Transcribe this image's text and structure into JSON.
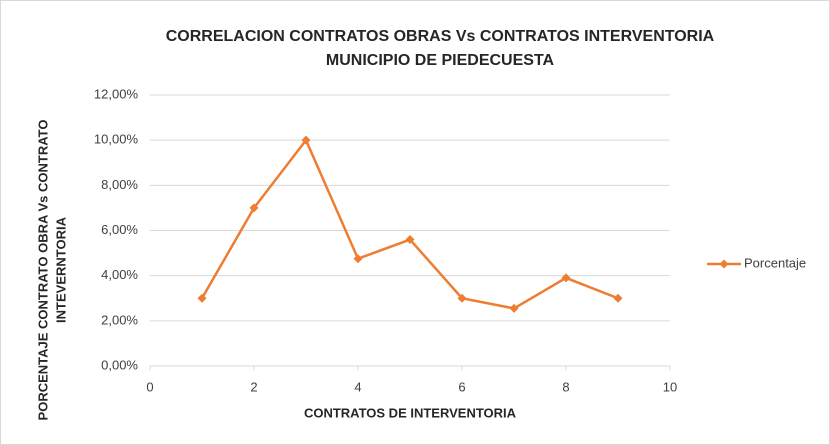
{
  "chart_data": {
    "type": "line",
    "title": [
      "CORRELACION CONTRATOS OBRAS Vs CONTRATOS INTERVENTORIA",
      "MUNICIPIO DE PIEDECUESTA"
    ],
    "x_label": "CONTRATOS DE INTERVENTORIA",
    "y_label": [
      "PORCENTAJE CONTRATO OBRA Vs CONTRATO",
      "INTEVERNTORIA"
    ],
    "x": [
      1,
      2,
      3,
      4,
      5,
      6,
      7,
      8,
      9
    ],
    "series": [
      {
        "name": "Porcentaje",
        "color": "#ed7d31",
        "values": [
          3,
          7,
          10,
          4.75,
          5.6,
          3,
          2.55,
          3.9,
          3
        ]
      }
    ],
    "xlim": [
      0,
      10
    ],
    "xticks": [
      0,
      2,
      4,
      6,
      8,
      10
    ],
    "ylim": [
      0,
      12
    ],
    "yticks": [
      {
        "value": 0,
        "label": "0,00%"
      },
      {
        "value": 2,
        "label": "2,00%"
      },
      {
        "value": 4,
        "label": "4,00%"
      },
      {
        "value": 6,
        "label": "6,00%"
      },
      {
        "value": 8,
        "label": "8,00%"
      },
      {
        "value": 10,
        "label": "10,00%"
      },
      {
        "value": 12,
        "label": "12,00%"
      }
    ],
    "grid": true,
    "legend": "right"
  }
}
